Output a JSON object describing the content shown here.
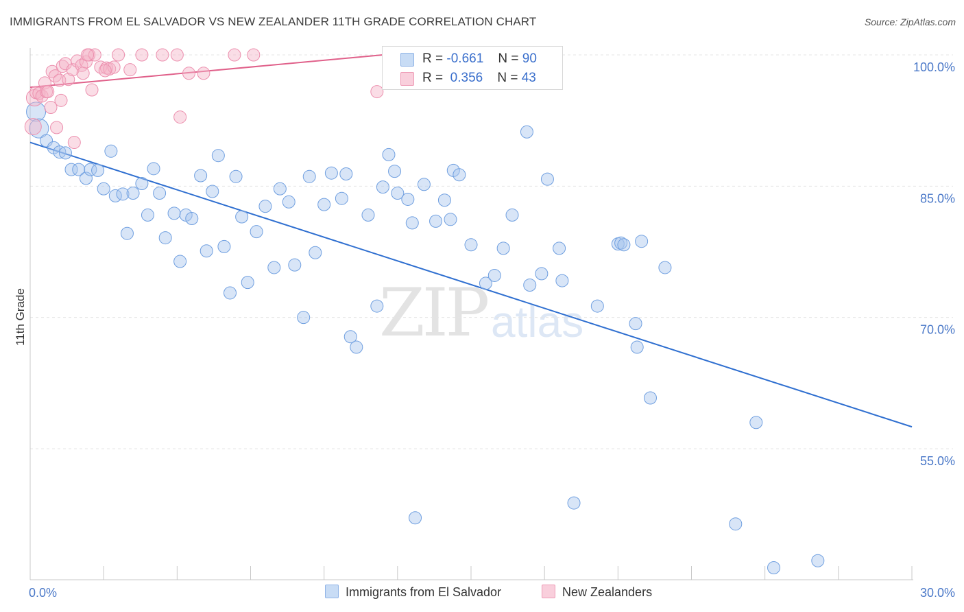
{
  "header": {
    "title": "IMMIGRANTS FROM EL SALVADOR VS NEW ZEALANDER 11TH GRADE CORRELATION CHART",
    "source": "Source: ZipAtlas.com"
  },
  "watermark": {
    "zip": "ZIP",
    "atlas": "atlas"
  },
  "legend_top": {
    "rows": [
      {
        "r_label": "R =",
        "r_value": "-0.661",
        "n_label": "N =",
        "n_value": "90",
        "color": "#a9c6ee"
      },
      {
        "r_label": "R =",
        "r_value": " 0.356",
        "n_label": "N =",
        "n_value": "43",
        "color": "#f5b3c8"
      }
    ]
  },
  "legend_bottom": {
    "items": [
      {
        "label": "Immigrants from El Salvador",
        "color": "#a9c6ee"
      },
      {
        "label": "New Zealanders",
        "color": "#f5b3c8"
      }
    ]
  },
  "chart_data": {
    "type": "scatter",
    "ylabel": "11th Grade",
    "xlabel": "",
    "xlim": [
      0,
      30
    ],
    "ylim": [
      41,
      101.5
    ],
    "x_tick_labels": [
      {
        "value": 0,
        "label": "0.0%"
      },
      {
        "value": 30,
        "label": "30.0%"
      }
    ],
    "y_tick_labels": [
      {
        "value": 100,
        "label": "100.0%"
      },
      {
        "value": 85,
        "label": "85.0%"
      },
      {
        "value": 70,
        "label": "70.0%"
      },
      {
        "value": 55,
        "label": "55.0%"
      }
    ],
    "grid": true,
    "legend_position": "top-center",
    "series": [
      {
        "name": "Immigrants from El Salvador",
        "color": "#6f9fe0",
        "fill": "#a9c6ee",
        "trend": {
          "x": [
            0,
            30
          ],
          "y": [
            90.0,
            57.5
          ],
          "color": "#2f6fd0"
        },
        "points": [
          [
            0.2,
            93.5
          ],
          [
            0.3,
            91.6
          ],
          [
            0.55,
            90.2
          ],
          [
            0.8,
            89.4
          ],
          [
            1.0,
            88.9
          ],
          [
            1.2,
            88.8
          ],
          [
            1.4,
            86.9
          ],
          [
            1.65,
            86.9
          ],
          [
            1.9,
            85.9
          ],
          [
            2.05,
            86.9
          ],
          [
            2.3,
            86.8
          ],
          [
            2.5,
            84.7
          ],
          [
            2.75,
            89.0
          ],
          [
            2.9,
            83.9
          ],
          [
            3.15,
            84.1
          ],
          [
            3.3,
            79.6
          ],
          [
            3.5,
            84.2
          ],
          [
            3.8,
            85.3
          ],
          [
            4.0,
            81.7
          ],
          [
            4.2,
            87.0
          ],
          [
            4.4,
            84.2
          ],
          [
            4.6,
            79.1
          ],
          [
            4.9,
            81.9
          ],
          [
            5.1,
            76.4
          ],
          [
            5.3,
            81.7
          ],
          [
            5.5,
            81.3
          ],
          [
            5.8,
            86.2
          ],
          [
            6.0,
            77.6
          ],
          [
            6.2,
            84.4
          ],
          [
            6.4,
            88.5
          ],
          [
            6.6,
            78.1
          ],
          [
            6.8,
            72.8
          ],
          [
            7.0,
            86.1
          ],
          [
            7.2,
            81.5
          ],
          [
            7.4,
            74.0
          ],
          [
            7.7,
            79.8
          ],
          [
            8.0,
            82.7
          ],
          [
            8.3,
            75.7
          ],
          [
            8.5,
            84.7
          ],
          [
            8.8,
            83.2
          ],
          [
            9.0,
            76.0
          ],
          [
            9.3,
            70.0
          ],
          [
            9.5,
            86.1
          ],
          [
            9.7,
            77.4
          ],
          [
            10.0,
            82.9
          ],
          [
            10.25,
            86.5
          ],
          [
            10.6,
            83.6
          ],
          [
            10.75,
            86.4
          ],
          [
            10.9,
            67.8
          ],
          [
            11.1,
            66.6
          ],
          [
            11.5,
            81.7
          ],
          [
            11.8,
            71.3
          ],
          [
            12.0,
            84.9
          ],
          [
            12.2,
            88.6
          ],
          [
            12.4,
            86.7
          ],
          [
            12.5,
            84.2
          ],
          [
            12.85,
            83.5
          ],
          [
            13.0,
            80.8
          ],
          [
            13.1,
            47.1
          ],
          [
            13.4,
            85.2
          ],
          [
            13.8,
            81.0
          ],
          [
            14.1,
            83.4
          ],
          [
            14.3,
            81.2
          ],
          [
            14.4,
            86.8
          ],
          [
            14.6,
            86.3
          ],
          [
            15.0,
            78.3
          ],
          [
            15.5,
            73.9
          ],
          [
            15.8,
            74.8
          ],
          [
            16.1,
            77.9
          ],
          [
            16.4,
            81.7
          ],
          [
            16.9,
            91.2
          ],
          [
            17.0,
            73.7
          ],
          [
            17.4,
            75.0
          ],
          [
            17.6,
            85.8
          ],
          [
            18.0,
            77.9
          ],
          [
            18.1,
            74.2
          ],
          [
            18.5,
            48.8
          ],
          [
            19.3,
            71.3
          ],
          [
            20.0,
            78.4
          ],
          [
            20.1,
            78.5
          ],
          [
            20.6,
            69.3
          ],
          [
            20.65,
            66.6
          ],
          [
            20.8,
            78.7
          ],
          [
            21.1,
            60.8
          ],
          [
            21.6,
            75.7
          ],
          [
            24.0,
            46.4
          ],
          [
            24.7,
            58.0
          ],
          [
            25.3,
            41.4
          ],
          [
            26.8,
            42.2
          ],
          [
            20.2,
            78.3
          ]
        ]
      },
      {
        "name": "New Zealanders",
        "color": "#ec8fae",
        "fill": "#f5b3c8",
        "trend": {
          "x": [
            0,
            12
          ],
          "y": [
            96.3,
            100.0
          ],
          "color": "#e0608a"
        },
        "points": [
          [
            0.1,
            91.8
          ],
          [
            0.15,
            95.1
          ],
          [
            0.2,
            95.7
          ],
          [
            0.3,
            95.6
          ],
          [
            0.4,
            95.3
          ],
          [
            0.5,
            96.8
          ],
          [
            0.55,
            95.8
          ],
          [
            0.6,
            95.8
          ],
          [
            0.7,
            94.0
          ],
          [
            0.75,
            98.1
          ],
          [
            0.85,
            97.6
          ],
          [
            0.9,
            91.7
          ],
          [
            1.0,
            97.1
          ],
          [
            1.05,
            94.8
          ],
          [
            1.1,
            98.7
          ],
          [
            1.2,
            99.0
          ],
          [
            1.3,
            97.2
          ],
          [
            1.45,
            98.3
          ],
          [
            1.5,
            90.0
          ],
          [
            1.6,
            99.3
          ],
          [
            1.75,
            98.8
          ],
          [
            1.8,
            97.9
          ],
          [
            1.9,
            99.2
          ],
          [
            2.0,
            100.0
          ],
          [
            2.1,
            96.0
          ],
          [
            2.2,
            100.0
          ],
          [
            2.4,
            98.6
          ],
          [
            2.6,
            98.5
          ],
          [
            2.7,
            98.4
          ],
          [
            2.85,
            98.6
          ],
          [
            3.0,
            100.0
          ],
          [
            3.4,
            98.3
          ],
          [
            3.8,
            100.0
          ],
          [
            4.5,
            100.0
          ],
          [
            5.1,
            92.9
          ],
          [
            5.4,
            97.9
          ],
          [
            5.9,
            97.9
          ],
          [
            6.95,
            100.0
          ],
          [
            7.6,
            100.0
          ],
          [
            11.8,
            95.8
          ],
          [
            5.0,
            100.0
          ],
          [
            2.55,
            98.2
          ],
          [
            1.95,
            100.0
          ]
        ]
      }
    ]
  }
}
